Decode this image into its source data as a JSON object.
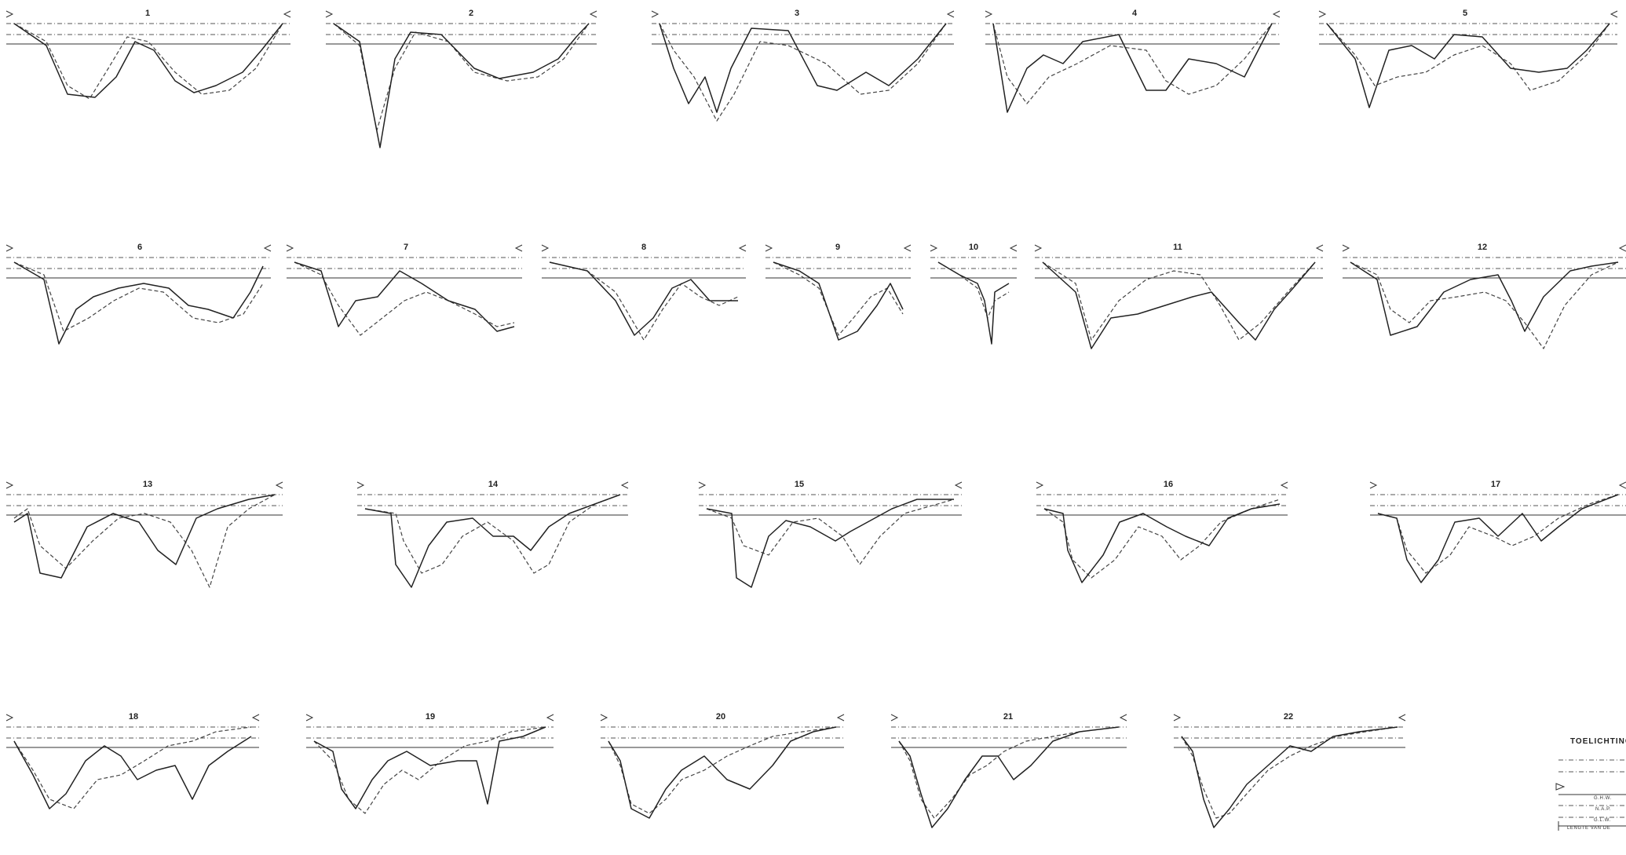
{
  "sheet": {
    "section_numbers": [
      "1",
      "2",
      "3",
      "4",
      "5",
      "6",
      "7",
      "8",
      "9",
      "10",
      "11",
      "12",
      "13",
      "14",
      "15",
      "16",
      "17",
      "18",
      "19",
      "20",
      "21",
      "22"
    ]
  },
  "legend": {
    "title": "TOELICHTING",
    "items": [
      {
        "label": "G.H.W.",
        "style": "dash-dot"
      },
      {
        "label": "N.A.P.",
        "style": "dash-dot"
      },
      {
        "label": "G.L.W.",
        "style": "dash-dot"
      },
      {
        "label": "LENGTE VAN DE",
        "style": "bracket"
      }
    ]
  }
}
